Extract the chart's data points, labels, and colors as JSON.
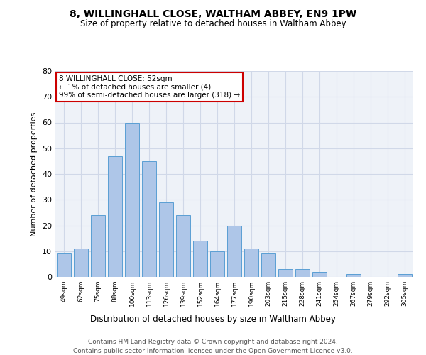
{
  "title1": "8, WILLINGHALL CLOSE, WALTHAM ABBEY, EN9 1PW",
  "title2": "Size of property relative to detached houses in Waltham Abbey",
  "xlabel": "Distribution of detached houses by size in Waltham Abbey",
  "ylabel": "Number of detached properties",
  "categories": [
    "49sqm",
    "62sqm",
    "75sqm",
    "88sqm",
    "100sqm",
    "113sqm",
    "126sqm",
    "139sqm",
    "152sqm",
    "164sqm",
    "177sqm",
    "190sqm",
    "203sqm",
    "215sqm",
    "228sqm",
    "241sqm",
    "254sqm",
    "267sqm",
    "279sqm",
    "292sqm",
    "305sqm"
  ],
  "values": [
    9,
    11,
    24,
    47,
    60,
    45,
    29,
    24,
    14,
    10,
    20,
    11,
    9,
    3,
    3,
    2,
    0,
    1,
    0,
    0,
    1
  ],
  "bar_color": "#aec6e8",
  "bar_edge_color": "#5a9fd4",
  "annotation_text": "8 WILLINGHALL CLOSE: 52sqm\n← 1% of detached houses are smaller (4)\n99% of semi-detached houses are larger (318) →",
  "annotation_box_color": "#ffffff",
  "annotation_box_edge": "#cc0000",
  "ylim": [
    0,
    80
  ],
  "yticks": [
    0,
    10,
    20,
    30,
    40,
    50,
    60,
    70,
    80
  ],
  "grid_color": "#d0d8e8",
  "bg_color": "#eef2f8",
  "footer1": "Contains HM Land Registry data © Crown copyright and database right 2024.",
  "footer2": "Contains public sector information licensed under the Open Government Licence v3.0."
}
